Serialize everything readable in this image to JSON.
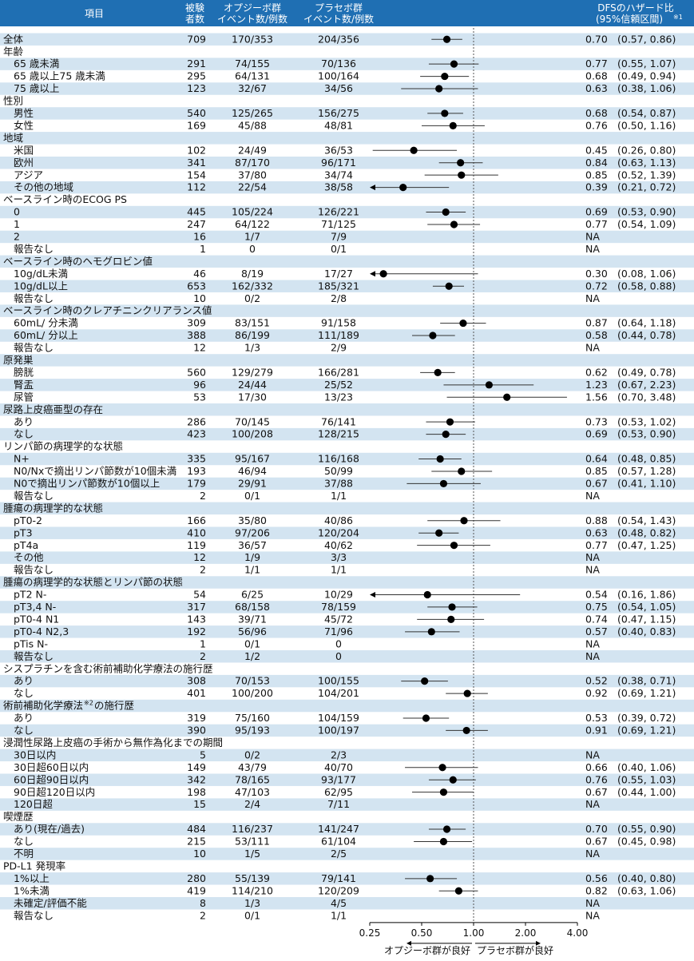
{
  "header": {
    "item": "項目",
    "n_line1": "被験",
    "n_line2": "者数",
    "opdivo_line1": "オプジーボ群",
    "opdivo_line2": "イベント数/例数",
    "placebo_line1": "プラセボ群",
    "placebo_line2": "イベント数/例数",
    "hr_line1": "DFSのハザード比",
    "hr_line2": "(95%信頼区間)",
    "hr_note": "※1"
  },
  "colors": {
    "header_bg": "#1f6fb3",
    "band": "#d3e4f1",
    "text": "#111111",
    "marker": "#000000",
    "ci_line": "#333333",
    "ref_line": "#555555"
  },
  "chart_data": {
    "type": "forest",
    "x_scale": "log",
    "xlim": [
      0.25,
      4.0
    ],
    "xticks": [
      "0.25",
      "0.50",
      "1.00",
      "2.00",
      "4.00"
    ],
    "reference_line": 1.0,
    "favor_left": "オプジーボ群が良好",
    "favor_right": "プラセボ群が良好",
    "rows": [
      {
        "type": "sub",
        "label": "全体",
        "n": "709",
        "opdivo": "170/353",
        "placebo": "204/356",
        "hr": 0.7,
        "lo": 0.57,
        "hi": 0.86,
        "hr_text": "0.70",
        "ci_text": "(0.57, 0.86)"
      },
      {
        "type": "cat",
        "label": "年齢"
      },
      {
        "type": "sub",
        "label": "65 歳未満",
        "n": "291",
        "opdivo": "74/155",
        "placebo": "70/136",
        "hr": 0.77,
        "lo": 0.55,
        "hi": 1.07,
        "hr_text": "0.77",
        "ci_text": "(0.55, 1.07)"
      },
      {
        "type": "sub",
        "label": "65 歳以上75 歳未満",
        "n": "295",
        "opdivo": "64/131",
        "placebo": "100/164",
        "hr": 0.68,
        "lo": 0.49,
        "hi": 0.94,
        "hr_text": "0.68",
        "ci_text": "(0.49, 0.94)"
      },
      {
        "type": "sub",
        "label": "75 歳以上",
        "n": "123",
        "opdivo": "32/67",
        "placebo": "34/56",
        "hr": 0.63,
        "lo": 0.38,
        "hi": 1.06,
        "hr_text": "0.63",
        "ci_text": "(0.38, 1.06)"
      },
      {
        "type": "cat",
        "label": "性別"
      },
      {
        "type": "sub",
        "label": "男性",
        "n": "540",
        "opdivo": "125/265",
        "placebo": "156/275",
        "hr": 0.68,
        "lo": 0.54,
        "hi": 0.87,
        "hr_text": "0.68",
        "ci_text": "(0.54, 0.87)"
      },
      {
        "type": "sub",
        "label": "女性",
        "n": "169",
        "opdivo": "45/88",
        "placebo": "48/81",
        "hr": 0.76,
        "lo": 0.5,
        "hi": 1.16,
        "hr_text": "0.76",
        "ci_text": "(0.50, 1.16)"
      },
      {
        "type": "cat",
        "label": "地域"
      },
      {
        "type": "sub",
        "label": "米国",
        "n": "102",
        "opdivo": "24/49",
        "placebo": "36/53",
        "hr": 0.45,
        "lo": 0.26,
        "hi": 0.8,
        "hr_text": "0.45",
        "ci_text": "(0.26, 0.80)"
      },
      {
        "type": "sub",
        "label": "欧州",
        "n": "341",
        "opdivo": "87/170",
        "placebo": "96/171",
        "hr": 0.84,
        "lo": 0.63,
        "hi": 1.13,
        "hr_text": "0.84",
        "ci_text": "(0.63, 1.13)"
      },
      {
        "type": "sub",
        "label": "アジア",
        "n": "154",
        "opdivo": "37/80",
        "placebo": "34/74",
        "hr": 0.85,
        "lo": 0.52,
        "hi": 1.39,
        "hr_text": "0.85",
        "ci_text": "(0.52, 1.39)"
      },
      {
        "type": "sub",
        "label": "その他の地域",
        "n": "112",
        "opdivo": "22/54",
        "placebo": "38/58",
        "hr": 0.39,
        "lo": 0.21,
        "hi": 0.72,
        "hr_text": "0.39",
        "ci_text": "(0.21, 0.72)"
      },
      {
        "type": "cat",
        "label": "ベースライン時のECOG PS"
      },
      {
        "type": "sub",
        "label": "0",
        "n": "445",
        "opdivo": "105/224",
        "placebo": "126/221",
        "hr": 0.69,
        "lo": 0.53,
        "hi": 0.9,
        "hr_text": "0.69",
        "ci_text": "(0.53, 0.90)"
      },
      {
        "type": "sub",
        "label": "1",
        "n": "247",
        "opdivo": "64/122",
        "placebo": "71/125",
        "hr": 0.77,
        "lo": 0.54,
        "hi": 1.09,
        "hr_text": "0.77",
        "ci_text": "(0.54, 1.09)"
      },
      {
        "type": "sub",
        "label": "2",
        "n": "16",
        "opdivo": "1/7",
        "placebo": "7/9",
        "hr_text": "NA"
      },
      {
        "type": "sub",
        "label": "報告なし",
        "n": "1",
        "opdivo": "0",
        "placebo": "0/1",
        "hr_text": "NA"
      },
      {
        "type": "cat",
        "label": "ベースライン時のヘモグロビン値"
      },
      {
        "type": "sub",
        "label": "10g/dL未満",
        "n": "46",
        "opdivo": "8/19",
        "placebo": "17/27",
        "hr": 0.3,
        "lo": 0.08,
        "hi": 1.06,
        "hr_text": "0.30",
        "ci_text": "(0.08, 1.06)"
      },
      {
        "type": "sub",
        "label": "10g/dL以上",
        "n": "653",
        "opdivo": "162/332",
        "placebo": "185/321",
        "hr": 0.72,
        "lo": 0.58,
        "hi": 0.88,
        "hr_text": "0.72",
        "ci_text": "(0.58, 0.88)"
      },
      {
        "type": "sub",
        "label": "報告なし",
        "n": "10",
        "opdivo": "0/2",
        "placebo": "2/8",
        "hr_text": "NA"
      },
      {
        "type": "cat",
        "label": "ベースライン時のクレアチニンクリアランス値"
      },
      {
        "type": "sub",
        "label": "60mL/ 分未満",
        "n": "309",
        "opdivo": "83/151",
        "placebo": "91/158",
        "hr": 0.87,
        "lo": 0.64,
        "hi": 1.18,
        "hr_text": "0.87",
        "ci_text": "(0.64, 1.18)"
      },
      {
        "type": "sub",
        "label": "60mL/ 分以上",
        "n": "388",
        "opdivo": "86/199",
        "placebo": "111/189",
        "hr": 0.58,
        "lo": 0.44,
        "hi": 0.78,
        "hr_text": "0.58",
        "ci_text": "(0.44, 0.78)"
      },
      {
        "type": "sub",
        "label": "報告なし",
        "n": "12",
        "opdivo": "1/3",
        "placebo": "2/9",
        "hr_text": "NA"
      },
      {
        "type": "cat",
        "label": "原発巣"
      },
      {
        "type": "sub",
        "label": "膀胱",
        "n": "560",
        "opdivo": "129/279",
        "placebo": "166/281",
        "hr": 0.62,
        "lo": 0.49,
        "hi": 0.78,
        "hr_text": "0.62",
        "ci_text": "(0.49, 0.78)"
      },
      {
        "type": "sub",
        "label": "腎盂",
        "n": "96",
        "opdivo": "24/44",
        "placebo": "25/52",
        "hr": 1.23,
        "lo": 0.67,
        "hi": 2.23,
        "hr_text": "1.23",
        "ci_text": "(0.67, 2.23)"
      },
      {
        "type": "sub",
        "label": "尿管",
        "n": "53",
        "opdivo": "17/30",
        "placebo": "13/23",
        "hr": 1.56,
        "lo": 0.7,
        "hi": 3.48,
        "hr_text": "1.56",
        "ci_text": "(0.70, 3.48)"
      },
      {
        "type": "cat",
        "label": "尿路上皮癌亜型の存在"
      },
      {
        "type": "sub",
        "label": "あり",
        "n": "286",
        "opdivo": "70/145",
        "placebo": "76/141",
        "hr": 0.73,
        "lo": 0.53,
        "hi": 1.02,
        "hr_text": "0.73",
        "ci_text": "(0.53, 1.02)"
      },
      {
        "type": "sub",
        "label": "なし",
        "n": "423",
        "opdivo": "100/208",
        "placebo": "128/215",
        "hr": 0.69,
        "lo": 0.53,
        "hi": 0.9,
        "hr_text": "0.69",
        "ci_text": "(0.53, 0.90)"
      },
      {
        "type": "cat",
        "label": "リンパ節の病理学的な状態"
      },
      {
        "type": "sub",
        "label": "N+",
        "n": "335",
        "opdivo": "95/167",
        "placebo": "116/168",
        "hr": 0.64,
        "lo": 0.48,
        "hi": 0.85,
        "hr_text": "0.64",
        "ci_text": "(0.48, 0.85)"
      },
      {
        "type": "sub",
        "label": "N0/Nxで摘出リンパ節数が10個未満",
        "n": "193",
        "opdivo": "46/94",
        "placebo": "50/99",
        "hr": 0.85,
        "lo": 0.57,
        "hi": 1.28,
        "hr_text": "0.85",
        "ci_text": "(0.57, 1.28)"
      },
      {
        "type": "sub",
        "label": "N0で摘出リンパ節数が10個以上",
        "n": "179",
        "opdivo": "29/91",
        "placebo": "37/88",
        "hr": 0.67,
        "lo": 0.41,
        "hi": 1.1,
        "hr_text": "0.67",
        "ci_text": "(0.41, 1.10)"
      },
      {
        "type": "sub",
        "label": "報告なし",
        "n": "2",
        "opdivo": "0/1",
        "placebo": "1/1",
        "hr_text": "NA"
      },
      {
        "type": "cat",
        "label": "腫瘍の病理学的な状態"
      },
      {
        "type": "sub",
        "label": "pT0-2",
        "n": "166",
        "opdivo": "35/80",
        "placebo": "40/86",
        "hr": 0.88,
        "lo": 0.54,
        "hi": 1.43,
        "hr_text": "0.88",
        "ci_text": "(0.54, 1.43)"
      },
      {
        "type": "sub",
        "label": "pT3",
        "n": "410",
        "opdivo": "97/206",
        "placebo": "120/204",
        "hr": 0.63,
        "lo": 0.48,
        "hi": 0.82,
        "hr_text": "0.63",
        "ci_text": "(0.48, 0.82)"
      },
      {
        "type": "sub",
        "label": "pT4a",
        "n": "119",
        "opdivo": "36/57",
        "placebo": "40/62",
        "hr": 0.77,
        "lo": 0.47,
        "hi": 1.25,
        "hr_text": "0.77",
        "ci_text": "(0.47, 1.25)"
      },
      {
        "type": "sub",
        "label": "その他",
        "n": "12",
        "opdivo": "1/9",
        "placebo": "3/3",
        "hr_text": "NA"
      },
      {
        "type": "sub",
        "label": "報告なし",
        "n": "2",
        "opdivo": "1/1",
        "placebo": "1/1",
        "hr_text": "NA"
      },
      {
        "type": "cat",
        "label": "腫瘍の病理学的な状態とリンパ節の状態"
      },
      {
        "type": "sub",
        "label": "pT2 N-",
        "n": "54",
        "opdivo": "6/25",
        "placebo": "10/29",
        "hr": 0.54,
        "lo": 0.16,
        "hi": 1.86,
        "hr_text": "0.54",
        "ci_text": "(0.16, 1.86)"
      },
      {
        "type": "sub",
        "label": "pT3,4 N-",
        "n": "317",
        "opdivo": "68/158",
        "placebo": "78/159",
        "hr": 0.75,
        "lo": 0.54,
        "hi": 1.05,
        "hr_text": "0.75",
        "ci_text": "(0.54, 1.05)"
      },
      {
        "type": "sub",
        "label": "pT0-4 N1",
        "n": "143",
        "opdivo": "39/71",
        "placebo": "45/72",
        "hr": 0.74,
        "lo": 0.47,
        "hi": 1.15,
        "hr_text": "0.74",
        "ci_text": "(0.47, 1.15)"
      },
      {
        "type": "sub",
        "label": "pT0-4 N2,3",
        "n": "192",
        "opdivo": "56/96",
        "placebo": "71/96",
        "hr": 0.57,
        "lo": 0.4,
        "hi": 0.83,
        "hr_text": "0.57",
        "ci_text": "(0.40, 0.83)"
      },
      {
        "type": "sub",
        "label": "pTis N-",
        "n": "1",
        "opdivo": "0/1",
        "placebo": "0",
        "hr_text": "NA"
      },
      {
        "type": "sub",
        "label": "報告なし",
        "n": "2",
        "opdivo": "1/2",
        "placebo": "0",
        "hr_text": "NA"
      },
      {
        "type": "cat",
        "label": "シスプラチンを含む術前補助化学療法の施行歴"
      },
      {
        "type": "sub",
        "label": "あり",
        "n": "308",
        "opdivo": "70/153",
        "placebo": "100/155",
        "hr": 0.52,
        "lo": 0.38,
        "hi": 0.71,
        "hr_text": "0.52",
        "ci_text": "(0.38, 0.71)"
      },
      {
        "type": "sub",
        "label": "なし",
        "n": "401",
        "opdivo": "100/200",
        "placebo": "104/201",
        "hr": 0.92,
        "lo": 0.69,
        "hi": 1.21,
        "hr_text": "0.92",
        "ci_text": "(0.69, 1.21)"
      },
      {
        "type": "cat",
        "label": "術前補助化学療法",
        "label_note": "※2",
        "label_suffix": "の施行歴"
      },
      {
        "type": "sub",
        "label": "あり",
        "n": "319",
        "opdivo": "75/160",
        "placebo": "104/159",
        "hr": 0.53,
        "lo": 0.39,
        "hi": 0.72,
        "hr_text": "0.53",
        "ci_text": "(0.39, 0.72)"
      },
      {
        "type": "sub",
        "label": "なし",
        "n": "390",
        "opdivo": "95/193",
        "placebo": "100/197",
        "hr": 0.91,
        "lo": 0.69,
        "hi": 1.21,
        "hr_text": "0.91",
        "ci_text": "(0.69, 1.21)"
      },
      {
        "type": "cat",
        "label": "浸潤性尿路上皮癌の手術から無作為化までの期間"
      },
      {
        "type": "sub",
        "label": "30日以内",
        "n": "5",
        "opdivo": "0/2",
        "placebo": "2/3",
        "hr_text": "NA"
      },
      {
        "type": "sub",
        "label": "30日超60日以内",
        "n": "149",
        "opdivo": "43/79",
        "placebo": "40/70",
        "hr": 0.66,
        "lo": 0.4,
        "hi": 1.06,
        "hr_text": "0.66",
        "ci_text": "(0.40, 1.06)"
      },
      {
        "type": "sub",
        "label": "60日超90日以内",
        "n": "342",
        "opdivo": "78/165",
        "placebo": "93/177",
        "hr": 0.76,
        "lo": 0.55,
        "hi": 1.03,
        "hr_text": "0.76",
        "ci_text": "(0.55, 1.03)"
      },
      {
        "type": "sub",
        "label": "90日超120日以内",
        "n": "198",
        "opdivo": "47/103",
        "placebo": "62/95",
        "hr": 0.67,
        "lo": 0.44,
        "hi": 1.0,
        "hr_text": "0.67",
        "ci_text": "(0.44, 1.00)"
      },
      {
        "type": "sub",
        "label": "120日超",
        "n": "15",
        "opdivo": "2/4",
        "placebo": "7/11",
        "hr_text": "NA"
      },
      {
        "type": "cat",
        "label": "喫煙歴"
      },
      {
        "type": "sub",
        "label": "あり(現在/過去)",
        "n": "484",
        "opdivo": "116/237",
        "placebo": "141/247",
        "hr": 0.7,
        "lo": 0.55,
        "hi": 0.9,
        "hr_text": "0.70",
        "ci_text": "(0.55, 0.90)"
      },
      {
        "type": "sub",
        "label": "なし",
        "n": "215",
        "opdivo": "53/111",
        "placebo": "61/104",
        "hr": 0.67,
        "lo": 0.45,
        "hi": 0.98,
        "hr_text": "0.67",
        "ci_text": "(0.45, 0.98)"
      },
      {
        "type": "sub",
        "label": "不明",
        "n": "10",
        "opdivo": "1/5",
        "placebo": "2/5",
        "hr_text": "NA"
      },
      {
        "type": "cat",
        "label": "PD-L1 発現率"
      },
      {
        "type": "sub",
        "label": "1%以上",
        "n": "280",
        "opdivo": "55/139",
        "placebo": "79/141",
        "hr": 0.56,
        "lo": 0.4,
        "hi": 0.8,
        "hr_text": "0.56",
        "ci_text": "(0.40, 0.80)"
      },
      {
        "type": "sub",
        "label": "1%未満",
        "n": "419",
        "opdivo": "114/210",
        "placebo": "120/209",
        "hr": 0.82,
        "lo": 0.63,
        "hi": 1.06,
        "hr_text": "0.82",
        "ci_text": "(0.63, 1.06)"
      },
      {
        "type": "sub",
        "label": "未確定/評価不能",
        "n": "8",
        "opdivo": "1/3",
        "placebo": "4/5",
        "hr_text": "NA"
      },
      {
        "type": "sub",
        "label": "報告なし",
        "n": "2",
        "opdivo": "0/1",
        "placebo": "1/1",
        "hr_text": "NA"
      }
    ]
  }
}
